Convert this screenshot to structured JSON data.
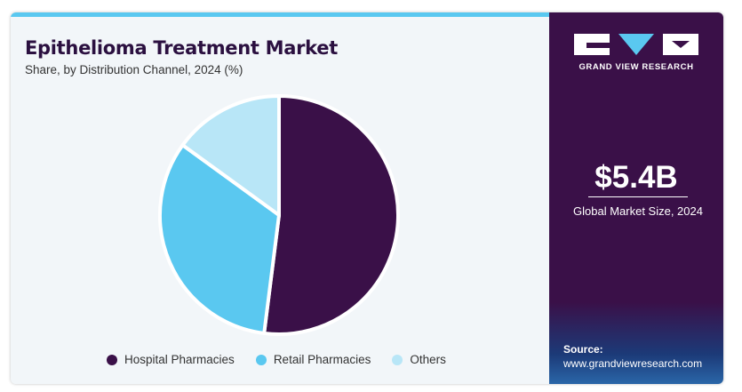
{
  "header": {
    "title": "Epithelioma Treatment Market",
    "subtitle": "Share, by Distribution Channel, 2024 (%)"
  },
  "chart_data": {
    "type": "pie",
    "title": "Epithelioma Treatment Market",
    "subtitle": "Share, by Distribution Channel, 2024 (%)",
    "categories": [
      "Hospital Pharmacies",
      "Retail Pharmacies",
      "Others"
    ],
    "values": [
      52,
      33,
      15
    ],
    "colors": [
      "#3a1048",
      "#5ac8f0",
      "#b8e6f7"
    ],
    "legend_position": "bottom",
    "start_angle_deg": 0,
    "direction": "clockwise"
  },
  "sidebar": {
    "brand": "GRAND VIEW RESEARCH",
    "market_size": "$5.4B",
    "market_size_label": "Global Market Size, 2024",
    "source_label": "Source:",
    "source_url": "www.grandviewresearch.com"
  },
  "colors": {
    "accent": "#5ac8f0",
    "brand_dark": "#3a1048",
    "title": "#2b1040"
  }
}
